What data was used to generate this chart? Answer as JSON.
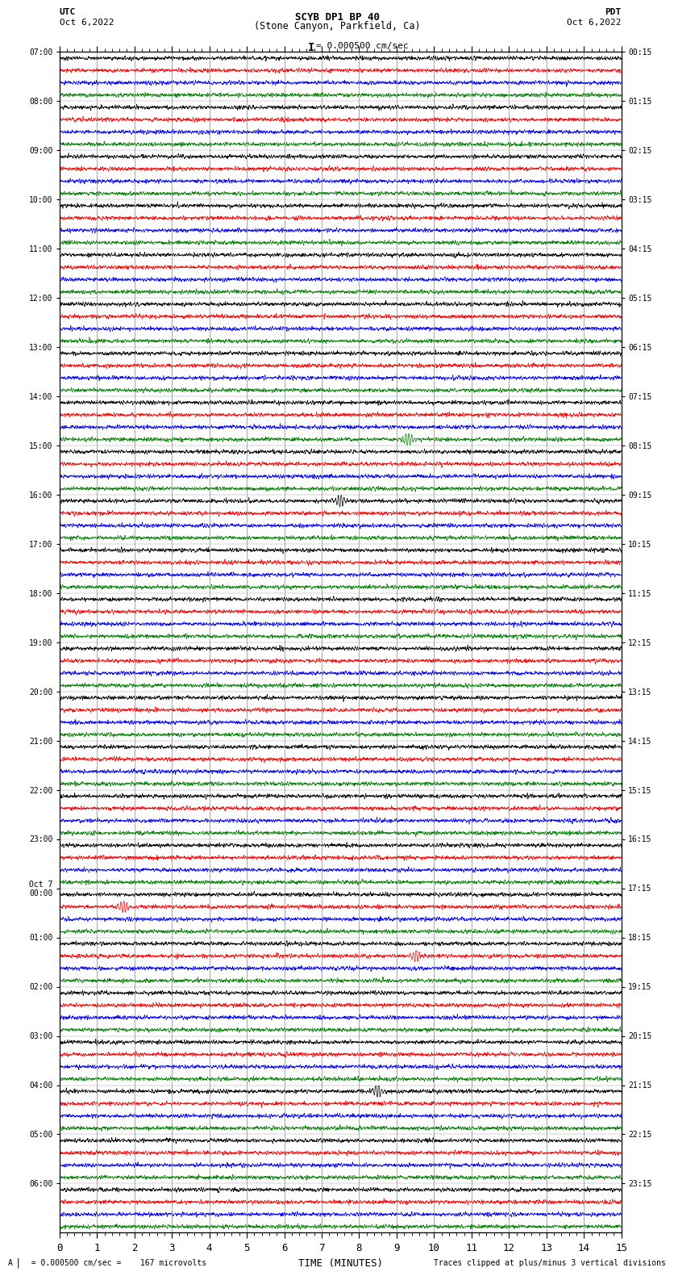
{
  "title_line1": "SCYB DP1 BP 40",
  "title_line2": "(Stone Canyon, Parkfield, Ca)",
  "scale_label": "= 0.000500 cm/sec",
  "utc_label": "UTC",
  "utc_date": "Oct 6,2022",
  "pdt_label": "PDT",
  "pdt_date": "Oct 6,2022",
  "footer_left": "  = 0.000500 cm/sec =    167 microvolts",
  "footer_right": "Traces clipped at plus/minus 3 vertical divisions",
  "xlabel": "TIME (MINUTES)",
  "left_labels_utc": [
    "07:00",
    "08:00",
    "09:00",
    "10:00",
    "11:00",
    "12:00",
    "13:00",
    "14:00",
    "15:00",
    "16:00",
    "17:00",
    "18:00",
    "19:00",
    "20:00",
    "21:00",
    "22:00",
    "23:00",
    "Oct 7\n00:00",
    "01:00",
    "02:00",
    "03:00",
    "04:00",
    "05:00",
    "06:00"
  ],
  "right_labels_pdt": [
    "00:15",
    "01:15",
    "02:15",
    "03:15",
    "04:15",
    "05:15",
    "06:15",
    "07:15",
    "08:15",
    "09:15",
    "10:15",
    "11:15",
    "12:15",
    "13:15",
    "14:15",
    "15:15",
    "16:15",
    "17:15",
    "18:15",
    "19:15",
    "20:15",
    "21:15",
    "22:15",
    "23:15"
  ],
  "num_rows": 24,
  "traces_per_row": 4,
  "colors": [
    "black",
    "red",
    "blue",
    "green"
  ],
  "noise_amplitude": 0.018,
  "background_color": "white",
  "x_min": 0,
  "x_max": 15,
  "x_ticks": [
    0,
    1,
    2,
    3,
    4,
    5,
    6,
    7,
    8,
    9,
    10,
    11,
    12,
    13,
    14,
    15
  ],
  "earthquake_events": [
    {
      "row": 7,
      "trace": 3,
      "minute": 9.3,
      "color": "green",
      "amplitude": 0.25
    },
    {
      "row": 9,
      "trace": 0,
      "minute": 7.5,
      "color": "black",
      "amplitude": 0.18
    },
    {
      "row": 17,
      "trace": 1,
      "minute": 1.7,
      "color": "red",
      "amplitude": 0.22
    },
    {
      "row": 18,
      "trace": 1,
      "minute": 9.5,
      "color": "red",
      "amplitude": 0.18
    },
    {
      "row": 21,
      "trace": 0,
      "minute": 8.5,
      "color": "black",
      "amplitude": 0.22
    }
  ]
}
